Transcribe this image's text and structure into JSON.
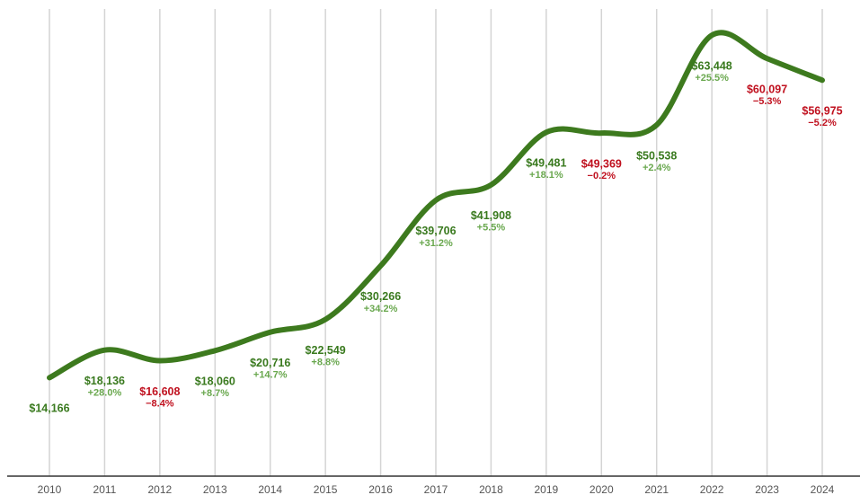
{
  "chart_data": {
    "type": "line",
    "categories": [
      "2010",
      "2011",
      "2012",
      "2013",
      "2014",
      "2015",
      "2016",
      "2017",
      "2018",
      "2019",
      "2020",
      "2021",
      "2022",
      "2023",
      "2024"
    ],
    "series": [
      {
        "color": "#3d7a1e",
        "values": [
          14166,
          18136,
          16608,
          18060,
          20716,
          22549,
          30266,
          39706,
          41908,
          49481,
          49369,
          50538,
          63448,
          60097,
          56975
        ],
        "value_labels": [
          "$14,166",
          "$18,136",
          "$16,608",
          "$18,060",
          "$20,716",
          "$22,549",
          "$30,266",
          "$39,706",
          "$41,908",
          "$49,481",
          "$49,369",
          "$50,538",
          "$63,448",
          "$60,097",
          "$56,975"
        ]
      }
    ],
    "change_labels": [
      null,
      "+28.0%",
      "−8.4%",
      "+8.7%",
      "+14.7%",
      "+8.8%",
      "+34.2%",
      "+31.2%",
      "+5.5%",
      "+18.1%",
      "−0.2%",
      "+2.4%",
      "+25.5%",
      "−5.3%",
      "−5.2%"
    ],
    "label_color": "#3a7a1f",
    "change_color": "#6aa84f",
    "negative_color": "#c0111f",
    "ylim": [
      0,
      68000
    ],
    "grid": true
  }
}
